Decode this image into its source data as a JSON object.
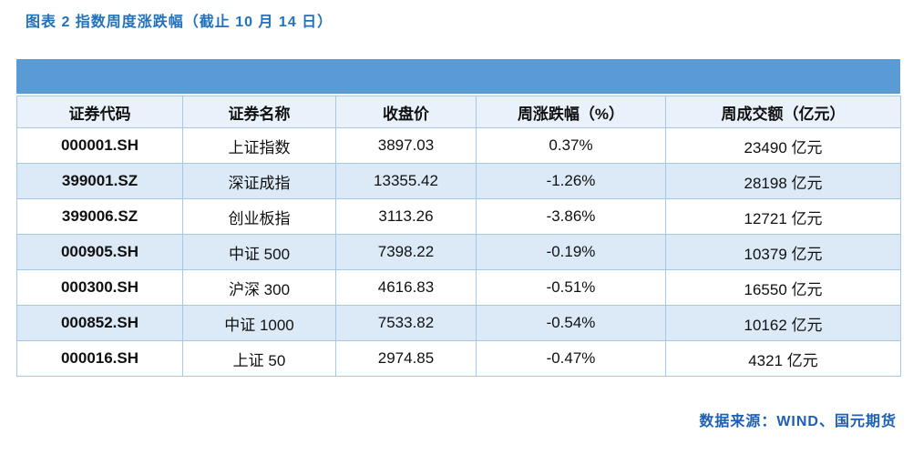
{
  "title": "图表 2 指数周度涨跌幅（截止 10 月 14 日）",
  "source": "数据来源：WIND、国元期货",
  "colors": {
    "top_bar": "#5B9BD5",
    "header_bg": "#E9F1FA",
    "band_bg": "#DCEAF7",
    "border": "#A6C8E7",
    "title_text": "#2171BD",
    "source_text": "#1C60B5"
  },
  "table": {
    "columns": [
      "证券代码",
      "证券名称",
      "收盘价",
      "周涨跌幅（%）",
      "周成交额（亿元）"
    ],
    "column_keys": [
      "code",
      "name",
      "close",
      "weekly-change",
      "weekly-turnover"
    ],
    "rows": [
      [
        "000001.SH",
        "上证指数",
        "3897.03",
        "0.37%",
        "23490 亿元"
      ],
      [
        "399001.SZ",
        "深证成指",
        "13355.42",
        "-1.26%",
        "28198 亿元"
      ],
      [
        "399006.SZ",
        "创业板指",
        "3113.26",
        "-3.86%",
        "12721 亿元"
      ],
      [
        "000905.SH",
        "中证 500",
        "7398.22",
        "-0.19%",
        "10379 亿元"
      ],
      [
        "000300.SH",
        "沪深 300",
        "4616.83",
        "-0.51%",
        "16550 亿元"
      ],
      [
        "000852.SH",
        "中证 1000",
        "7533.82",
        "-0.54%",
        "10162 亿元"
      ],
      [
        "000016.SH",
        "上证 50",
        "2974.85",
        "-0.47%",
        "4321 亿元"
      ]
    ]
  }
}
